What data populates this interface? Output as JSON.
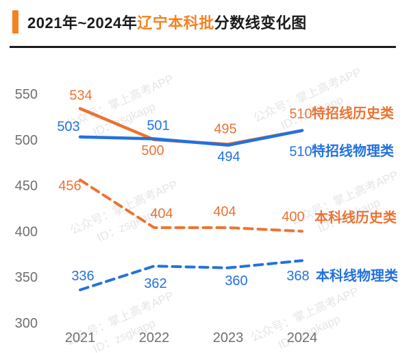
{
  "header": {
    "title_prefix": "2021年~2024年",
    "title_highlight": "辽宁本科批",
    "title_suffix": "分数线变化图",
    "accent_color": "#f58220"
  },
  "watermark": {
    "line1": "公众号：掌上高考APP",
    "line2": "ID：zsgkapp"
  },
  "colors": {
    "orange": "#ee7230",
    "blue": "#2271e0",
    "axis_text": "#6f6f6f"
  },
  "chart_data": {
    "type": "line",
    "title": "2021年~2024年辽宁本科批分数线变化图",
    "x": [
      2021,
      2022,
      2023,
      2024
    ],
    "series": [
      {
        "name": "特招线历史类",
        "color": "#ee7230",
        "style": "solid",
        "values": [
          534,
          500,
          495,
          510
        ]
      },
      {
        "name": "特招线物理类",
        "color": "#2271e0",
        "style": "solid",
        "values": [
          503,
          501,
          494,
          510
        ]
      },
      {
        "name": "本科线历史类",
        "color": "#ee7230",
        "style": "dashed",
        "values": [
          456,
          404,
          404,
          400
        ]
      },
      {
        "name": "本科线物理类",
        "color": "#2271e0",
        "style": "dashed",
        "values": [
          336,
          362,
          360,
          368
        ]
      }
    ],
    "ylim": [
      300,
      550
    ],
    "yticks": [
      550,
      500,
      450,
      400,
      350,
      300
    ],
    "grid": false,
    "legend_position": "right-of-line-end",
    "xlabel": "",
    "ylabel": ""
  }
}
